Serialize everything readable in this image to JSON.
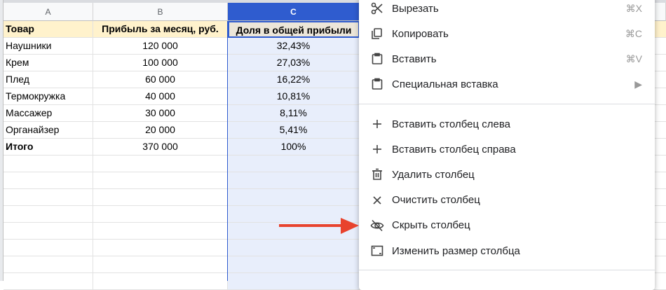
{
  "columns": [
    "A",
    "B",
    "C"
  ],
  "header": [
    "Товар",
    "Прибыль за месяц, руб.",
    "Доля в общей прибыли"
  ],
  "rows": [
    [
      "Наушники",
      "120 000",
      "32,43%"
    ],
    [
      "Крем",
      "100 000",
      "27,03%"
    ],
    [
      "Плед",
      "60 000",
      "16,22%"
    ],
    [
      "Термокружка",
      "40 000",
      "10,81%"
    ],
    [
      "Массажер",
      "30 000",
      "8,11%"
    ],
    [
      "Органайзер",
      "20 000",
      "5,41%"
    ]
  ],
  "total": [
    "Итого",
    "370 000",
    "100%"
  ],
  "menu": {
    "group1": [
      {
        "icon": "scissors-icon",
        "label": "Вырезать",
        "shortcut": "⌘X"
      },
      {
        "icon": "copy-icon",
        "label": "Копировать",
        "shortcut": "⌘C"
      },
      {
        "icon": "clipboard-icon",
        "label": "Вставить",
        "shortcut": "⌘V"
      },
      {
        "icon": "clipboard-icon",
        "label": "Специальная вставка",
        "shortcut": "▶"
      }
    ],
    "group2": [
      {
        "icon": "plus-icon",
        "label": "Вставить столбец слева"
      },
      {
        "icon": "plus-icon",
        "label": "Вставить столбец справа"
      },
      {
        "icon": "trash-icon",
        "label": "Удалить столбец"
      },
      {
        "icon": "close-icon",
        "label": "Очистить столбец"
      },
      {
        "icon": "eye-off-icon",
        "label": "Скрыть столбец"
      },
      {
        "icon": "resize-icon",
        "label": "Изменить размер столбца"
      }
    ]
  },
  "colors": {
    "selection": "#2f5ccf",
    "header_fill": "#fff2cc",
    "arrow": "#e8432d"
  }
}
